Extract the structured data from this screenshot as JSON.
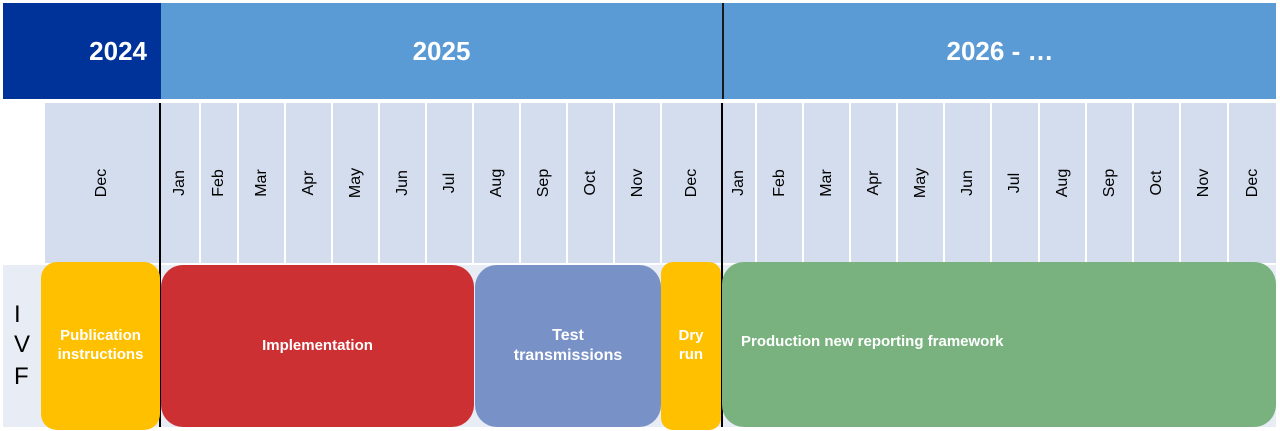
{
  "years": {
    "y2024": "2024",
    "y2025": "2025",
    "y2026": "2026 - …"
  },
  "months": [
    "Dec",
    "Jan",
    "Feb",
    "Mar",
    "Apr",
    "May",
    "Jun",
    "Jul",
    "Aug",
    "Sep",
    "Oct",
    "Nov",
    "Dec",
    "Jan",
    "Feb",
    "Mar",
    "Apr",
    "May",
    "Jun",
    "Jul",
    "Aug",
    "Sep",
    "Oct",
    "Nov",
    "Dec"
  ],
  "row_label": [
    "I",
    "V",
    "F"
  ],
  "phases": {
    "publication": "Publication instructions",
    "implementation": "Implementation",
    "test": "Test transmissions",
    "dry_run": "Dry run",
    "production": "Production new reporting framework"
  },
  "colors": {
    "year_2024": "#003399",
    "year_other": "#5b9bd5",
    "month_bg": "#d3ddee",
    "row_bg": "#e8ecf5",
    "publication": "#ffc000",
    "implementation": "#cc3033",
    "test": "#7891c6",
    "dry_run": "#ffc000",
    "production": "#79b27f"
  }
}
